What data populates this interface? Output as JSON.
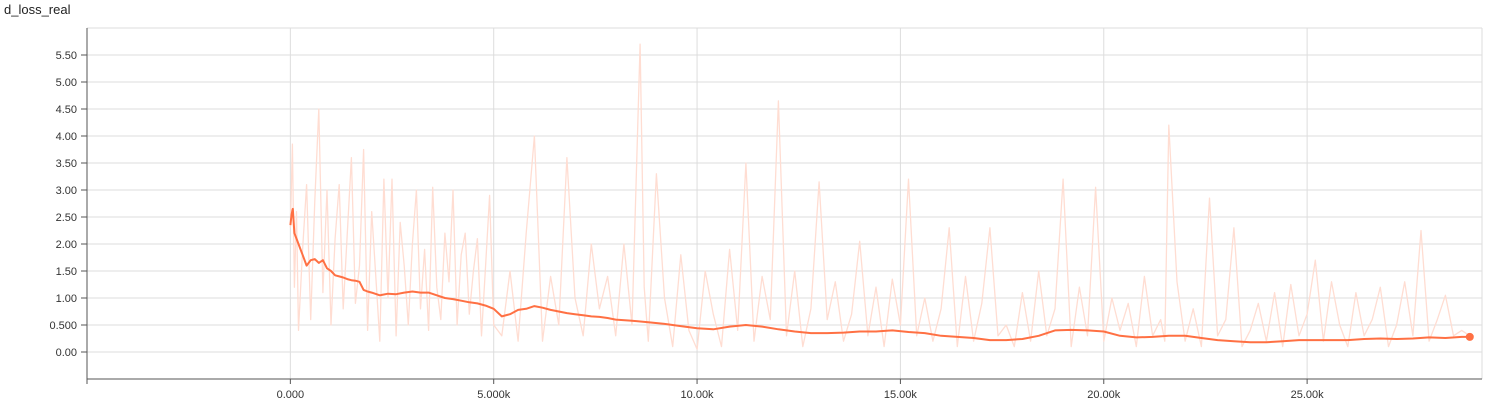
{
  "chart_data": {
    "type": "line",
    "title": "d_loss_real",
    "xlabel": "",
    "ylabel": "",
    "xlim": [
      -5000,
      29300
    ],
    "ylim": [
      -0.5,
      6.0
    ],
    "xticks": [
      {
        "value": 0,
        "label": "0.000"
      },
      {
        "value": 5000,
        "label": "5.000k"
      },
      {
        "value": 10000,
        "label": "10.00k"
      },
      {
        "value": 15000,
        "label": "15.00k"
      },
      {
        "value": 20000,
        "label": "20.00k"
      },
      {
        "value": 25000,
        "label": "25.00k"
      }
    ],
    "yticks": [
      {
        "value": 0,
        "label": "0.00"
      },
      {
        "value": 0.5,
        "label": "0.500"
      },
      {
        "value": 1.0,
        "label": "1.00"
      },
      {
        "value": 1.5,
        "label": "1.50"
      },
      {
        "value": 2.0,
        "label": "2.00"
      },
      {
        "value": 2.5,
        "label": "2.50"
      },
      {
        "value": 3.0,
        "label": "3.00"
      },
      {
        "value": 3.5,
        "label": "3.50"
      },
      {
        "value": 4.0,
        "label": "4.00"
      },
      {
        "value": 4.5,
        "label": "4.50"
      },
      {
        "value": 5.0,
        "label": "5.00"
      },
      {
        "value": 5.5,
        "label": "5.50"
      }
    ],
    "grid": true,
    "colors": {
      "smoothed": "#ff7043",
      "raw": "#ffddd2",
      "grid": "#dddddd",
      "axis": "#555555"
    },
    "series": [
      {
        "role": "raw",
        "x": [
          0,
          50,
          100,
          150,
          200,
          300,
          400,
          500,
          600,
          700,
          800,
          900,
          1000,
          1100,
          1200,
          1300,
          1400,
          1500,
          1600,
          1700,
          1800,
          1900,
          2000,
          2100,
          2200,
          2300,
          2400,
          2500,
          2600,
          2700,
          2800,
          2900,
          3000,
          3100,
          3200,
          3300,
          3400,
          3500,
          3600,
          3700,
          3800,
          3900,
          4000,
          4100,
          4200,
          4300,
          4400,
          4500,
          4600,
          4700,
          4800,
          4900,
          5000,
          5200,
          5400,
          5600,
          5800,
          6000,
          6200,
          6400,
          6600,
          6800,
          7000,
          7200,
          7400,
          7600,
          7800,
          8000,
          8200,
          8400,
          8600,
          8700,
          8800,
          9000,
          9200,
          9400,
          9600,
          9800,
          10000,
          10200,
          10400,
          10600,
          10800,
          11000,
          11200,
          11400,
          11600,
          11800,
          12000,
          12200,
          12400,
          12600,
          12800,
          13000,
          13200,
          13400,
          13600,
          13800,
          14000,
          14200,
          14400,
          14600,
          14800,
          15000,
          15200,
          15400,
          15600,
          15800,
          16000,
          16200,
          16400,
          16600,
          16800,
          17000,
          17200,
          17400,
          17600,
          17800,
          18000,
          18200,
          18400,
          18600,
          18800,
          19000,
          19200,
          19400,
          19600,
          19800,
          20000,
          20200,
          20400,
          20600,
          20800,
          21000,
          21200,
          21400,
          21500,
          21600,
          21800,
          22000,
          22200,
          22400,
          22600,
          22800,
          23000,
          23200,
          23400,
          23600,
          23800,
          24000,
          24200,
          24400,
          24600,
          24800,
          25000,
          25200,
          25400,
          25600,
          25800,
          26000,
          26200,
          26400,
          26600,
          26800,
          27000,
          27200,
          27400,
          27600,
          27800,
          28000,
          28200,
          28400,
          28600,
          28800,
          29000
        ],
        "values": [
          2.3,
          3.85,
          1.2,
          2.6,
          0.4,
          1.9,
          3.1,
          0.6,
          2.8,
          4.5,
          1.1,
          3.0,
          0.5,
          2.1,
          3.1,
          0.8,
          2.2,
          3.6,
          0.9,
          1.6,
          3.75,
          0.4,
          2.6,
          1.4,
          0.2,
          3.2,
          1.0,
          3.2,
          0.3,
          2.4,
          1.6,
          0.5,
          2.0,
          3.0,
          0.8,
          1.9,
          0.4,
          3.05,
          1.2,
          0.6,
          2.2,
          1.3,
          3.0,
          0.5,
          1.8,
          2.2,
          0.7,
          1.5,
          2.1,
          0.3,
          1.6,
          2.9,
          0.5,
          0.3,
          1.5,
          0.2,
          2.2,
          4.0,
          0.2,
          1.4,
          0.5,
          3.6,
          1.0,
          0.3,
          2.0,
          0.8,
          1.4,
          0.3,
          2.0,
          0.5,
          5.7,
          1.2,
          0.2,
          3.3,
          1.0,
          0.1,
          1.8,
          0.4,
          0.05,
          1.5,
          0.7,
          0.1,
          1.9,
          0.4,
          3.5,
          0.2,
          1.4,
          0.6,
          4.65,
          0.3,
          1.5,
          0.1,
          0.8,
          3.15,
          0.6,
          1.3,
          0.2,
          0.7,
          2.05,
          0.3,
          1.2,
          0.1,
          1.35,
          0.5,
          3.2,
          0.3,
          1.0,
          0.2,
          0.8,
          2.3,
          0.1,
          1.4,
          0.2,
          0.9,
          2.3,
          0.3,
          0.5,
          0.1,
          1.1,
          0.2,
          1.5,
          0.3,
          0.8,
          3.2,
          0.1,
          1.2,
          0.3,
          3.05,
          0.2,
          1.0,
          0.4,
          0.9,
          0.1,
          1.4,
          0.3,
          0.6,
          0.2,
          4.2,
          1.3,
          0.2,
          0.8,
          0.1,
          2.85,
          0.3,
          0.6,
          2.3,
          0.1,
          0.4,
          0.9,
          0.2,
          1.1,
          0.1,
          1.25,
          0.3,
          0.7,
          1.7,
          0.2,
          1.3,
          0.5,
          0.1,
          1.1,
          0.3,
          0.6,
          1.2,
          0.1,
          0.5,
          1.3,
          0.3,
          2.25,
          0.2,
          0.6,
          1.05,
          0.3,
          0.4,
          0.3
        ]
      },
      {
        "role": "smoothed",
        "x": [
          0,
          30,
          60,
          100,
          150,
          200,
          300,
          400,
          500,
          600,
          700,
          800,
          900,
          1000,
          1100,
          1200,
          1300,
          1400,
          1500,
          1600,
          1700,
          1800,
          1900,
          2000,
          2200,
          2400,
          2600,
          2800,
          3000,
          3200,
          3400,
          3600,
          3800,
          4000,
          4200,
          4400,
          4600,
          4800,
          5000,
          5200,
          5400,
          5600,
          5800,
          6000,
          6200,
          6400,
          6600,
          6800,
          7000,
          7200,
          7400,
          7600,
          7800,
          8000,
          8400,
          8800,
          9200,
          9600,
          10000,
          10400,
          10800,
          11200,
          11600,
          12000,
          12400,
          12800,
          13200,
          13600,
          14000,
          14400,
          14800,
          15200,
          15600,
          16000,
          16400,
          16800,
          17200,
          17600,
          18000,
          18400,
          18800,
          19200,
          19600,
          20000,
          20400,
          20800,
          21200,
          21600,
          22000,
          22400,
          22800,
          23200,
          23600,
          24000,
          24400,
          24800,
          25200,
          25600,
          26000,
          26400,
          26800,
          27200,
          27600,
          28000,
          28400,
          28800,
          29000
        ],
        "values": [
          2.35,
          2.55,
          2.65,
          2.2,
          2.1,
          2.0,
          1.8,
          1.6,
          1.7,
          1.72,
          1.65,
          1.7,
          1.55,
          1.5,
          1.42,
          1.4,
          1.38,
          1.35,
          1.33,
          1.32,
          1.3,
          1.15,
          1.12,
          1.1,
          1.05,
          1.08,
          1.07,
          1.1,
          1.12,
          1.1,
          1.1,
          1.05,
          1.0,
          0.98,
          0.95,
          0.92,
          0.9,
          0.86,
          0.8,
          0.66,
          0.7,
          0.78,
          0.8,
          0.85,
          0.82,
          0.78,
          0.75,
          0.72,
          0.7,
          0.68,
          0.66,
          0.65,
          0.63,
          0.6,
          0.58,
          0.55,
          0.52,
          0.48,
          0.44,
          0.42,
          0.47,
          0.5,
          0.47,
          0.42,
          0.38,
          0.35,
          0.35,
          0.36,
          0.38,
          0.38,
          0.4,
          0.37,
          0.35,
          0.3,
          0.28,
          0.26,
          0.22,
          0.22,
          0.24,
          0.3,
          0.4,
          0.41,
          0.4,
          0.38,
          0.3,
          0.27,
          0.28,
          0.3,
          0.3,
          0.26,
          0.22,
          0.2,
          0.18,
          0.18,
          0.2,
          0.22,
          0.22,
          0.22,
          0.22,
          0.24,
          0.25,
          0.24,
          0.25,
          0.27,
          0.26,
          0.28,
          0.28
        ]
      }
    ]
  }
}
